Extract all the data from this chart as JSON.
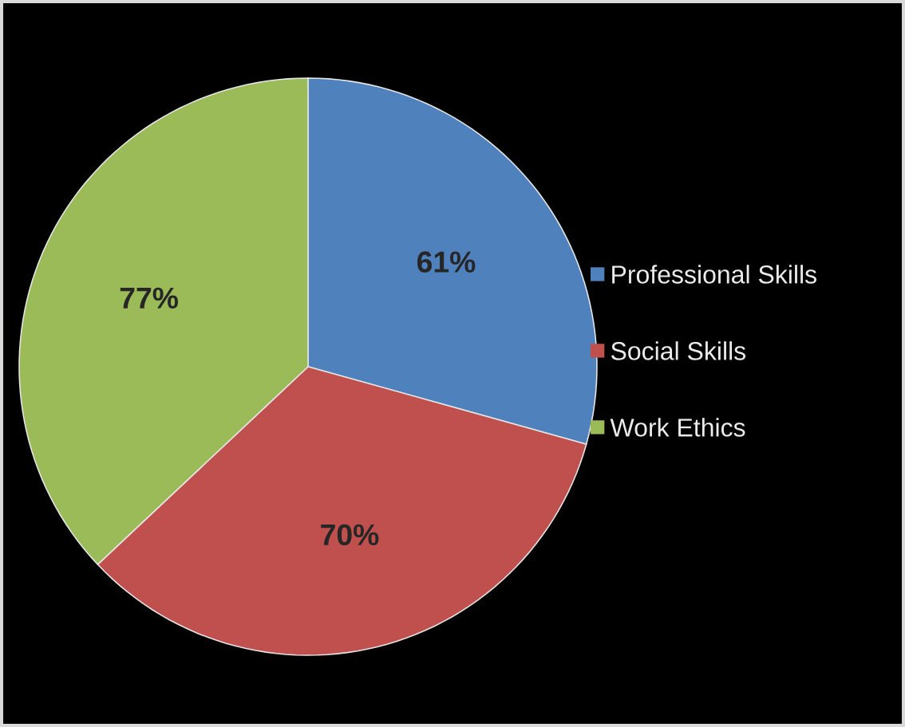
{
  "chart_data": {
    "type": "pie",
    "categories": [
      "Professional Skills",
      "Social Skills",
      "Work Ethics"
    ],
    "values": [
      61,
      70,
      77
    ],
    "colors": [
      "#4f81bd",
      "#c0504d",
      "#9bbb59"
    ],
    "value_labels": [
      "61%",
      "70%",
      "77%"
    ],
    "legend": "right"
  }
}
